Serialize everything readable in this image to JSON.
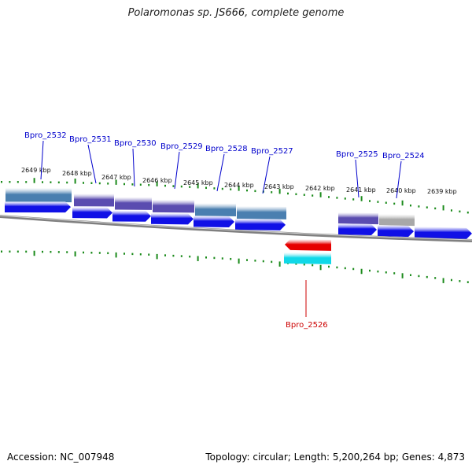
{
  "title": "Polaromonas sp. JS666, complete genome",
  "footer": {
    "accession": "Accession: NC_007948",
    "summary": "Topology: circular; Length: 5,200,264 bp; Genes: 4,873"
  },
  "colors": {
    "forward_cds": "#1010e6",
    "reverse_cds": "#e60000",
    "gene_steelblue": "#4a7fb0",
    "gene_purple": "#5a4cb0",
    "gene_grey": "#a8a8a8",
    "gene_cyan": "#10d8e8",
    "ticks": "#1a8a1a",
    "backbone": "#808080",
    "label_forward": "#0000cc",
    "label_reverse": "#cc0000"
  },
  "tick_labels": [
    "2649 kbp",
    "2648 kbp",
    "2647 kbp",
    "2646 kbp",
    "2645 kbp",
    "2644 kbp",
    "2643 kbp",
    "2642 kbp",
    "2641 kbp",
    "2640 kbp",
    "2639 kbp"
  ],
  "genes": [
    {
      "label": "Bpro_2532",
      "strand": "forward"
    },
    {
      "label": "Bpro_2531",
      "strand": "forward"
    },
    {
      "label": "Bpro_2530",
      "strand": "forward"
    },
    {
      "label": "Bpro_2529",
      "strand": "forward"
    },
    {
      "label": "Bpro_2528",
      "strand": "forward"
    },
    {
      "label": "Bpro_2527",
      "strand": "forward"
    },
    {
      "label": "Bpro_2526",
      "strand": "reverse"
    },
    {
      "label": "Bpro_2525",
      "strand": "forward"
    },
    {
      "label": "Bpro_2524",
      "strand": "forward"
    }
  ]
}
